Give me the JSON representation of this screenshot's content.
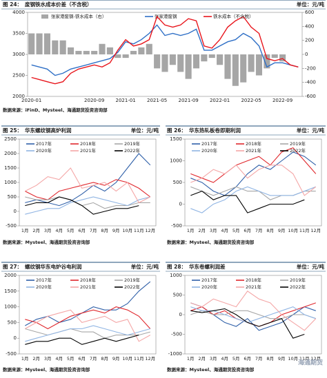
{
  "chart_data": [
    {
      "type": "combo",
      "figure": "图 24：",
      "title": "废钢铁水成本价差（不含税）",
      "unit": "单位：元/吨",
      "source": "数据来源：iFinD、Mysteel、海通期货投资咨询部",
      "categories": [
        "2020-01",
        "2020-02",
        "2020-03",
        "2020-04",
        "2020-05",
        "2020-06",
        "2020-07",
        "2020-08",
        "2020-09",
        "2020-10",
        "2020-11",
        "2020-12",
        "2021-01",
        "2021-02",
        "2021-03",
        "2021-04",
        "2021-05",
        "2021-06",
        "2021-07",
        "2021-08",
        "2021-09",
        "2021-10",
        "2021-11",
        "2021-12",
        "2022-01",
        "2022-02",
        "2022-03",
        "2022-04",
        "2022-05",
        "2022-06",
        "2022-07",
        "2022-08",
        "2022-09",
        "2022-10",
        "2022-11"
      ],
      "xticks": [
        "2020-01",
        "2020-09",
        "2021-01",
        "2021-05",
        "2021-09",
        "2022-01",
        "2022-05",
        "2022-09"
      ],
      "ylim": [
        2000,
        4000
      ],
      "yticks": [
        2000,
        2500,
        3000,
        3500,
        4000
      ],
      "y2lim": [
        -600,
        600
      ],
      "y2ticks": [
        -600,
        -400,
        -200,
        0,
        200,
        400,
        600
      ],
      "series": [
        {
          "name": "张家港废钢-铁水成本（右）",
          "type": "bar",
          "axis": "y2",
          "color": "#a6a6a6",
          "values": [
            300,
            300,
            300,
            200,
            200,
            100,
            50,
            50,
            50,
            150,
            100,
            -50,
            -50,
            50,
            100,
            150,
            -200,
            -250,
            -150,
            -250,
            -350,
            -200,
            -100,
            -50,
            -150,
            -350,
            -450,
            -400,
            -250,
            -300,
            -200,
            -50,
            -100,
            0,
            0
          ]
        },
        {
          "name": "张家港废钢",
          "color": "#2e6fc6",
          "values": [
            2750,
            2700,
            2650,
            2500,
            2550,
            2650,
            2700,
            2750,
            2800,
            2850,
            2900,
            3050,
            3300,
            3250,
            3350,
            3500,
            3700,
            3450,
            3500,
            3450,
            3500,
            3600,
            3100,
            3100,
            3200,
            3300,
            3350,
            3500,
            3400,
            3200,
            2700,
            2800,
            2800,
            2750,
            2700
          ]
        },
        {
          "name": "铁水成本（不含税）",
          "color": "#e8141b",
          "values": [
            2450,
            2400,
            2350,
            2300,
            2350,
            2550,
            2650,
            2700,
            2750,
            2700,
            2800,
            3100,
            3350,
            3200,
            3250,
            3350,
            3900,
            3700,
            3650,
            3700,
            3850,
            3800,
            3200,
            3150,
            3350,
            3650,
            3800,
            3900,
            3650,
            3500,
            2900,
            2850,
            2900,
            2750,
            2700
          ]
        }
      ]
    },
    {
      "type": "line",
      "figure": "图 25：",
      "title": "华东螺纹钢高炉利润",
      "unit": "单位：元/吨",
      "source": "数据来源：Mysteel、海通期货投资咨询部",
      "categories": [
        "1月",
        "2月",
        "3月",
        "4月",
        "5月",
        "6月",
        "7月",
        "8月",
        "9月",
        "10月",
        "11月",
        "12月"
      ],
      "ylim": [
        -500,
        2500
      ],
      "yticks": [
        -500,
        0,
        500,
        1000,
        1500,
        2000,
        2500
      ],
      "series": [
        {
          "name": "2017年",
          "color": "#2e5fa8",
          "values": [
            300,
            400,
            300,
            200,
            350,
            600,
            900,
            700,
            1000,
            1500,
            2000,
            1600
          ]
        },
        {
          "name": "2018年",
          "color": "#e0262b",
          "values": [
            700,
            500,
            400,
            700,
            800,
            900,
            1000,
            900,
            1100,
            1000,
            800,
            500
          ]
        },
        {
          "name": "2019年",
          "color": "#a6a6a6",
          "values": [
            500,
            400,
            400,
            500,
            400,
            200,
            300,
            100,
            200,
            200,
            300,
            300
          ]
        },
        {
          "name": "2020年",
          "color": "#8fb4e3",
          "values": [
            -100,
            0,
            100,
            100,
            300,
            400,
            500,
            400,
            300,
            200,
            400,
            500
          ]
        },
        {
          "name": "2021年",
          "color": "#f4a6a6",
          "values": [
            700,
            900,
            1200,
            1100,
            1500,
            800,
            900,
            1000,
            700,
            1000,
            300,
            500
          ]
        },
        {
          "name": "2022年",
          "color": "#000000",
          "values": [
            200,
            300,
            300,
            500,
            400,
            200,
            -100,
            0,
            100,
            100,
            200,
            null
          ]
        }
      ]
    },
    {
      "type": "line",
      "figure": "图 26：",
      "title": "华东热轧板卷即期利润",
      "unit": "单位：元/吨",
      "source": "数据来源：Mysteel、海通期货投资咨询部",
      "categories": [
        "1月",
        "2月",
        "3月",
        "4月",
        "5月",
        "6月",
        "7月",
        "8月",
        "9月",
        "10月",
        "11月",
        "12月"
      ],
      "ylim": [
        -500,
        1500
      ],
      "yticks": [
        -500,
        0,
        500,
        1000,
        1500
      ],
      "series": [
        {
          "name": "2017年",
          "color": "#2e5fa8",
          "values": [
            600,
            500,
            300,
            200,
            400,
            700,
            900,
            800,
            1000,
            1200,
            1100,
            900
          ]
        },
        {
          "name": "2018年",
          "color": "#e0262b",
          "values": [
            700,
            600,
            500,
            700,
            900,
            1000,
            1100,
            900,
            1200,
            1300,
            1000,
            700
          ]
        },
        {
          "name": "2019年",
          "color": "#a6a6a6",
          "values": [
            400,
            300,
            200,
            300,
            400,
            300,
            300,
            100,
            200,
            200,
            300,
            300
          ]
        },
        {
          "name": "2020年",
          "color": "#8fb4e3",
          "values": [
            -100,
            -200,
            0,
            100,
            300,
            400,
            300,
            200,
            200,
            200,
            300,
            400
          ]
        },
        {
          "name": "2021年",
          "color": "#f4a6a6",
          "values": [
            500,
            600,
            800,
            700,
            900,
            600,
            800,
            900,
            900,
            700,
            200,
            400
          ]
        },
        {
          "name": "2022年",
          "color": "#000000",
          "values": [
            200,
            300,
            100,
            200,
            200,
            -200,
            -100,
            0,
            0,
            0,
            100,
            null
          ]
        }
      ]
    },
    {
      "type": "line",
      "figure": "图 27：",
      "title": "螺纹钢华东电炉谷电利润",
      "unit": "单位：元/吨",
      "source": "数据来源：Mysteel、海通期货投资咨询部",
      "categories": [
        "1月",
        "2月",
        "3月",
        "4月",
        "5月",
        "6月",
        "7月",
        "8月",
        "9月",
        "10月",
        "11月",
        "12月"
      ],
      "ylim": [
        -500,
        2000
      ],
      "yticks": [
        -500,
        0,
        500,
        1000,
        1500,
        2000
      ],
      "series": [
        {
          "name": "2017年",
          "color": "#2e5fa8",
          "values": [
            400,
            600,
            700,
            500,
            600,
            800,
            1000,
            900,
            900,
            1100,
            1500,
            1800
          ]
        },
        {
          "name": "2018年",
          "color": "#e0262b",
          "values": [
            600,
            500,
            300,
            500,
            700,
            800,
            900,
            800,
            1000,
            900,
            700,
            300
          ]
        },
        {
          "name": "2019年",
          "color": "#a6a6a6",
          "values": [
            300,
            200,
            100,
            200,
            300,
            200,
            200,
            0,
            100,
            100,
            100,
            200
          ]
        },
        {
          "name": "2020年",
          "color": "#8fb4e3",
          "values": [
            -100,
            0,
            100,
            200,
            300,
            300,
            400,
            300,
            200,
            100,
            200,
            300
          ]
        },
        {
          "name": "2021年",
          "color": "#f4a6a6",
          "values": [
            300,
            500,
            700,
            800,
            900,
            500,
            600,
            700,
            500,
            600,
            -100,
            100
          ]
        },
        {
          "name": "2022年",
          "color": "#000000",
          "values": [
            -200,
            -100,
            -100,
            0,
            0,
            -200,
            -100,
            0,
            -100,
            0,
            100,
            null
          ]
        }
      ]
    },
    {
      "type": "line",
      "figure": "图 28：",
      "title": "华东卷螺利润差",
      "unit": "单位：元/吨",
      "source": "数据来源：Mysteel、海通期货投资咨询部",
      "categories": [
        "1月",
        "2月",
        "3月",
        "4月",
        "5月",
        "6月",
        "7月",
        "8月",
        "9月",
        "10月",
        "11月",
        "12月"
      ],
      "ylim": [
        -1000,
        1000
      ],
      "yticks": [
        -1000,
        -500,
        0,
        500,
        1000
      ],
      "series": [
        {
          "name": "2017年",
          "color": "#2e5fa8",
          "values": [
            300,
            200,
            0,
            -200,
            -300,
            -100,
            -400,
            -300,
            -200,
            0,
            200,
            100
          ]
        },
        {
          "name": "2018年",
          "color": "#e0262b",
          "values": [
            100,
            200,
            0,
            100,
            -100,
            -200,
            -300,
            -200,
            0,
            100,
            200,
            300
          ]
        },
        {
          "name": "2019年",
          "color": "#a6a6a6",
          "values": [
            0,
            100,
            0,
            0,
            100,
            100,
            0,
            -100,
            -100,
            0,
            0,
            -100
          ]
        },
        {
          "name": "2020年",
          "color": "#8fb4e3",
          "values": [
            200,
            100,
            100,
            0,
            -100,
            -200,
            -100,
            0,
            100,
            200,
            0,
            -100
          ]
        },
        {
          "name": "2021年",
          "color": "#f4a6a6",
          "values": [
            300,
            200,
            400,
            300,
            200,
            600,
            400,
            300,
            0,
            -200,
            -400,
            -100
          ]
        },
        {
          "name": "2022年",
          "color": "#000000",
          "values": [
            100,
            50,
            100,
            150,
            0,
            -200,
            -300,
            -200,
            -100,
            -600,
            -500,
            null
          ]
        }
      ]
    }
  ],
  "watermark": "海通期货"
}
